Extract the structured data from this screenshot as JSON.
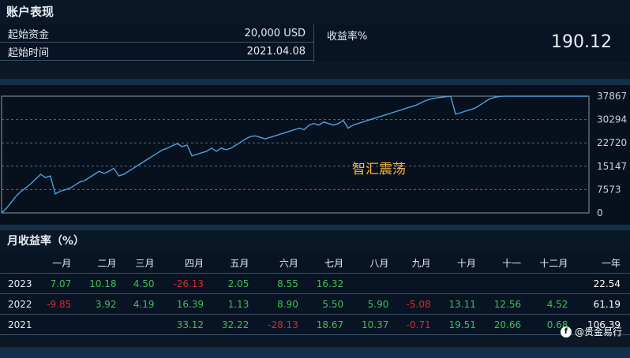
{
  "account": {
    "title": "账户表现",
    "rows": [
      {
        "label": "起始资金",
        "value": "20,000 USD"
      },
      {
        "label": "起始时间",
        "value": "2021.04.08"
      }
    ],
    "return_label": "收益率%",
    "return_value": "190.12"
  },
  "chart_data": {
    "type": "line",
    "annotation": "智汇震荡",
    "y_ticks": [
      "37867",
      "30294",
      "22720",
      "15147",
      "7573",
      "0"
    ],
    "ylim": [
      0,
      37867
    ],
    "grid": true,
    "line_color": "#4aa3df",
    "annotation_color": "#f3b53c",
    "x": [
      0,
      1,
      2,
      3,
      4,
      5,
      6,
      7,
      8,
      9,
      10,
      11,
      12,
      13,
      14,
      15,
      16,
      17,
      18,
      19,
      20,
      21,
      22,
      23,
      24,
      25,
      26,
      27,
      28,
      29,
      30,
      31,
      32,
      33,
      34,
      35,
      36,
      37,
      38,
      39,
      40,
      41,
      42,
      43,
      44,
      45,
      46,
      47,
      48,
      49,
      50,
      51,
      52,
      53,
      54,
      55,
      56,
      57,
      58,
      59,
      60,
      61,
      62,
      63,
      64,
      65,
      66,
      67,
      68,
      69,
      70,
      71,
      72,
      73,
      74,
      75,
      76,
      77,
      78,
      79,
      80,
      81,
      82,
      83,
      84,
      85,
      86,
      87,
      88,
      89,
      90,
      91,
      92,
      93,
      94,
      95,
      96,
      97,
      98,
      99,
      100,
      101,
      102,
      103,
      104,
      105,
      106,
      107,
      108,
      109,
      110,
      111,
      112,
      113,
      114,
      115,
      116,
      117,
      118,
      119,
      120
    ],
    "values": [
      0,
      1500,
      3500,
      5500,
      7000,
      8200,
      9500,
      11000,
      12500,
      11500,
      12000,
      6200,
      7000,
      7500,
      8000,
      9000,
      10000,
      10500,
      11500,
      12500,
      13500,
      12800,
      13500,
      14500,
      12000,
      12500,
      13500,
      14500,
      15500,
      16500,
      17500,
      18500,
      19500,
      20500,
      21000,
      21800,
      22500,
      21500,
      22000,
      18500,
      19000,
      19500,
      20000,
      21000,
      20000,
      21000,
      20500,
      21000,
      22000,
      23000,
      24000,
      24800,
      25000,
      24500,
      24000,
      24500,
      25000,
      25500,
      26000,
      26500,
      27000,
      27500,
      27000,
      28500,
      29000,
      28500,
      29500,
      29000,
      28500,
      29000,
      30000,
      27500,
      28500,
      29000,
      29500,
      30000,
      30500,
      31000,
      31500,
      32000,
      32500,
      33000,
      33500,
      34000,
      34500,
      35000,
      35800,
      36500,
      37000,
      37300,
      37500,
      37700,
      37867,
      32000,
      32500,
      33000,
      33500,
      34000,
      35000,
      36000,
      37000,
      37500,
      37800,
      37867,
      37867,
      37867,
      37867,
      37867,
      37867,
      37867,
      37867,
      37867,
      37867,
      37867,
      37867,
      37867,
      37867,
      37867,
      37867,
      37867,
      37867
    ]
  },
  "monthly": {
    "title": "月收益率（%）",
    "headers": [
      "一月",
      "二月",
      "三月",
      "四月",
      "五月",
      "六月",
      "七月",
      "八月",
      "九月",
      "十月",
      "十一",
      "十二月",
      "一年"
    ],
    "rows": [
      {
        "year": "2023",
        "values": [
          "7.07",
          "10.18",
          "4.50",
          "-26.13",
          "2.05",
          "8.55",
          "16.32",
          "",
          "",
          "",
          "",
          "",
          "22.54"
        ]
      },
      {
        "year": "2022",
        "values": [
          "-9.85",
          "3.92",
          "4.19",
          "16.39",
          "1.13",
          "8.90",
          "5.50",
          "5.90",
          "-5.08",
          "13.11",
          "12.56",
          "4.52",
          "61.19"
        ]
      },
      {
        "year": "2021",
        "values": [
          "",
          "",
          "",
          "33.12",
          "32.22",
          "-28.13",
          "18.67",
          "10.37",
          "-0.71",
          "19.51",
          "20.66",
          "0.68",
          "106.39"
        ]
      }
    ]
  },
  "watermark": {
    "icon": "facebook-icon",
    "text": "@贵金易行"
  }
}
